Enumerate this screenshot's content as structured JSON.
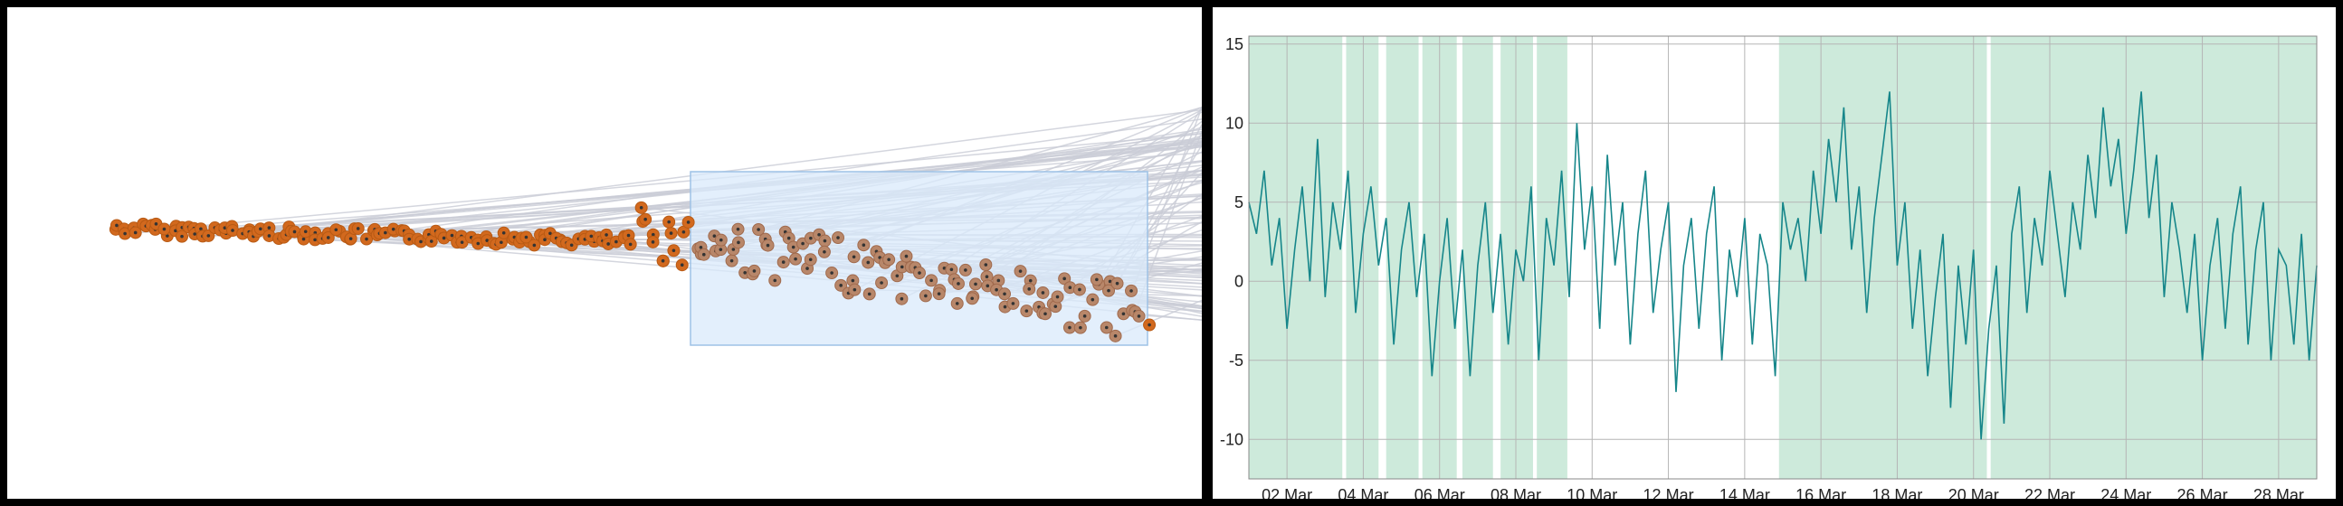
{
  "left_chart": {
    "type": "scatter",
    "description_colors": {
      "point_fill": "#d2691e",
      "point_fill_selected": "#b8876a",
      "link_color": "#c9ccd6",
      "selection_fill": "#d9eafb",
      "selection_stroke": "#9ec2e6"
    }
  },
  "chart_data": {
    "type": "line",
    "title": "",
    "xlabel": "",
    "ylabel": "",
    "x_tick_labels": [
      "02 Mar",
      "04 Mar",
      "06 Mar",
      "08 Mar",
      "10 Mar",
      "12 Mar",
      "14 Mar",
      "16 Mar",
      "18 Mar",
      "20 Mar",
      "22 Mar",
      "24 Mar",
      "26 Mar",
      "28 Mar"
    ],
    "y_tick_labels": [
      "15",
      "10",
      "5",
      "0",
      "-5",
      "-10"
    ],
    "y_ticks": [
      15,
      10,
      5,
      0,
      -5,
      -10
    ],
    "ylim": [
      -12.5,
      15.5
    ],
    "xlim_days": [
      1.0,
      29.0
    ],
    "grid": true,
    "line_color": "#16868a",
    "shade_color": "#cdeadb",
    "shaded_intervals_days": [
      [
        1.0,
        3.45
      ],
      [
        3.55,
        4.4
      ],
      [
        4.6,
        5.45
      ],
      [
        5.55,
        6.45
      ],
      [
        6.6,
        7.4
      ],
      [
        7.6,
        8.45
      ],
      [
        8.55,
        9.35
      ],
      [
        14.9,
        20.35
      ],
      [
        20.45,
        29.0
      ]
    ],
    "series": [
      {
        "x_days": [
          1.0,
          1.2,
          1.4,
          1.6,
          1.8,
          2.0,
          2.2,
          2.4,
          2.6,
          2.8,
          3.0,
          3.2,
          3.4,
          3.6,
          3.8,
          4.0,
          4.2,
          4.4,
          4.6,
          4.8,
          5.0,
          5.2,
          5.4,
          5.6,
          5.8,
          6.0,
          6.2,
          6.4,
          6.6,
          6.8,
          7.0,
          7.2,
          7.4,
          7.6,
          7.8,
          8.0,
          8.2,
          8.4,
          8.6,
          8.8,
          9.0,
          9.2,
          9.4,
          9.6,
          9.8,
          10.0,
          10.2,
          10.4,
          10.6,
          10.8,
          11.0,
          11.2,
          11.4,
          11.6,
          11.8,
          12.0,
          12.2,
          12.4,
          12.6,
          12.8,
          13.0,
          13.2,
          13.4,
          13.6,
          13.8,
          14.0,
          14.2,
          14.4,
          14.6,
          14.8,
          15.0,
          15.2,
          15.4,
          15.6,
          15.8,
          16.0,
          16.2,
          16.4,
          16.6,
          16.8,
          17.0,
          17.2,
          17.4,
          17.6,
          17.8,
          18.0,
          18.2,
          18.4,
          18.6,
          18.8,
          19.0,
          19.2,
          19.4,
          19.6,
          19.8,
          20.0,
          20.2,
          20.4,
          20.6,
          20.8,
          21.0,
          21.2,
          21.4,
          21.6,
          21.8,
          22.0,
          22.2,
          22.4,
          22.6,
          22.8,
          23.0,
          23.2,
          23.4,
          23.6,
          23.8,
          24.0,
          24.2,
          24.4,
          24.6,
          24.8,
          25.0,
          25.2,
          25.4,
          25.6,
          25.8,
          26.0,
          26.2,
          26.4,
          26.6,
          26.8,
          27.0,
          27.2,
          27.4,
          27.6,
          27.8,
          28.0,
          28.2,
          28.4,
          28.6,
          28.8,
          29.0
        ],
        "values": [
          5,
          3,
          7,
          1,
          4,
          -3,
          2,
          6,
          0,
          9,
          -1,
          5,
          2,
          7,
          -2,
          3,
          6,
          1,
          4,
          -4,
          2,
          5,
          -1,
          3,
          -6,
          0,
          4,
          -3,
          2,
          -6,
          1,
          5,
          -2,
          3,
          -4,
          2,
          0,
          6,
          -5,
          4,
          1,
          7,
          -1,
          10,
          2,
          6,
          -3,
          8,
          1,
          5,
          -4,
          3,
          7,
          -2,
          2,
          5,
          -7,
          1,
          4,
          -3,
          3,
          6,
          -5,
          2,
          -1,
          4,
          -4,
          3,
          1,
          -6,
          5,
          2,
          4,
          0,
          7,
          3,
          9,
          5,
          11,
          2,
          6,
          -2,
          4,
          8,
          12,
          1,
          5,
          -3,
          2,
          -6,
          -1,
          3,
          -8,
          1,
          -4,
          2,
          -10,
          -3,
          1,
          -9,
          3,
          6,
          -2,
          4,
          1,
          7,
          3,
          -1,
          5,
          2,
          8,
          4,
          11,
          6,
          9,
          3,
          7,
          12,
          4,
          8,
          -1,
          5,
          2,
          -2,
          3,
          -5,
          1,
          4,
          -3,
          3,
          6,
          -4,
          2,
          5,
          -5,
          2,
          1,
          -4,
          3,
          -5,
          1
        ]
      }
    ]
  }
}
